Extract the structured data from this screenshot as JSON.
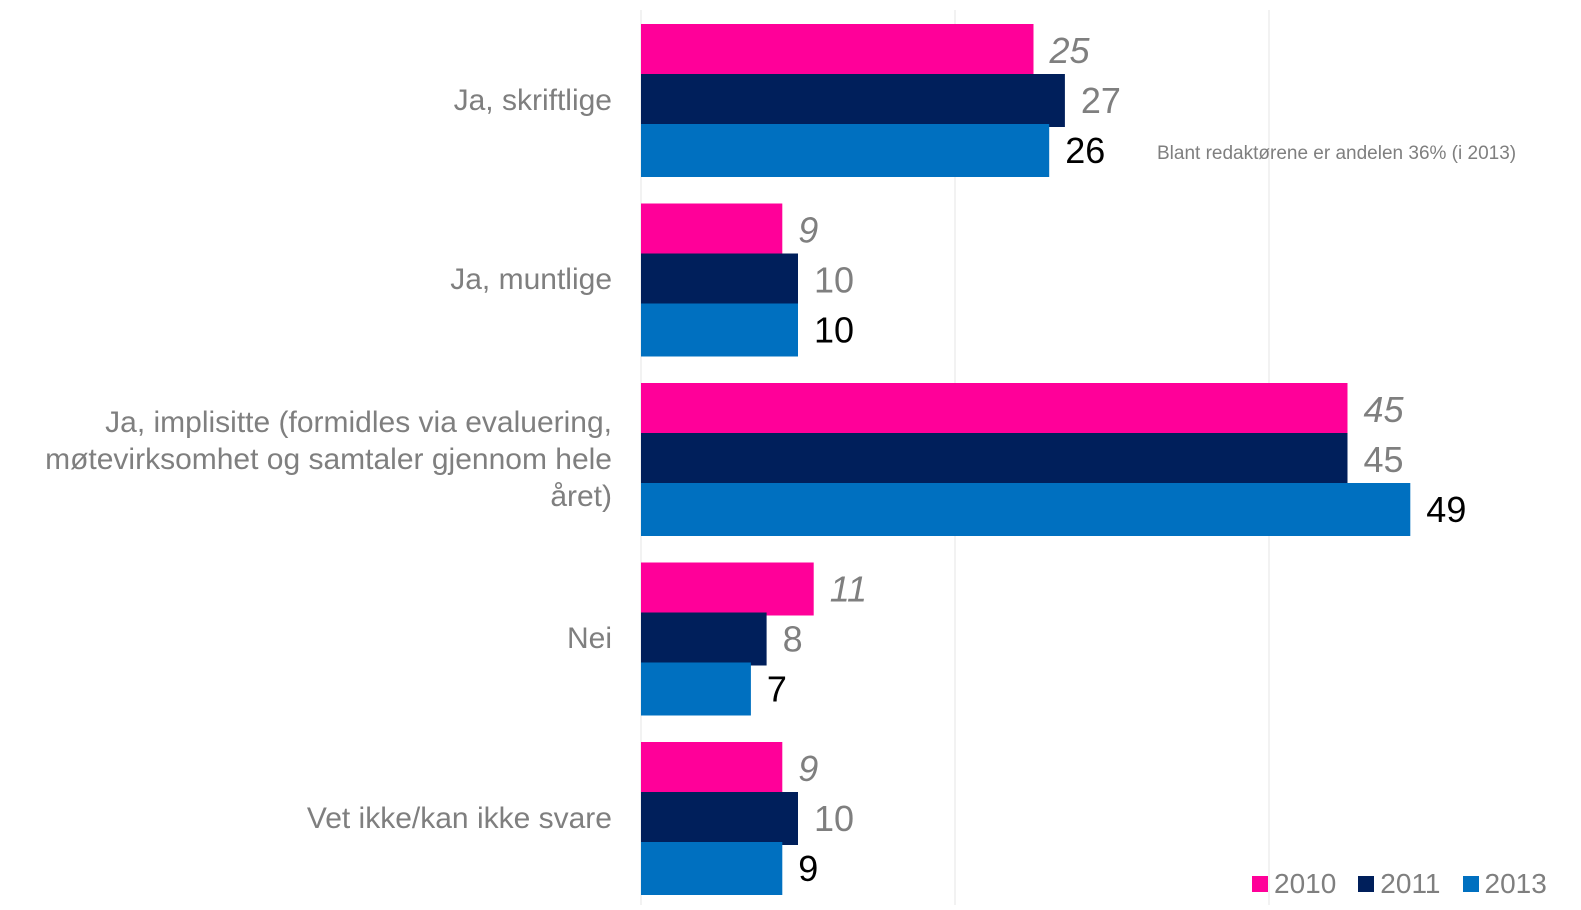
{
  "chart_data": {
    "type": "bar",
    "orientation": "horizontal",
    "categories": [
      "Ja, skriftlige",
      "Ja, muntlige",
      "Ja, implisitte (formidles via evaluering, møtevirksomhet og samtaler gjennom hele året)",
      "Nei",
      "Vet ikke/kan ikke svare"
    ],
    "series": [
      {
        "name": "2010",
        "color": "#ff0099",
        "values": [
          25,
          9,
          45,
          11,
          9
        ],
        "label_style": "italic-gray"
      },
      {
        "name": "2011",
        "color": "#001f5b",
        "values": [
          27,
          10,
          45,
          8,
          10
        ],
        "label_style": "gray"
      },
      {
        "name": "2013",
        "color": "#0070c0",
        "values": [
          26,
          10,
          49,
          7,
          9
        ],
        "label_style": "black"
      }
    ],
    "xlim": [
      0,
      59
    ],
    "grid": "vertical",
    "legend_position": "bottom-right",
    "annotation": "Blant redaktørene er andelen 36% (i 2013)"
  }
}
